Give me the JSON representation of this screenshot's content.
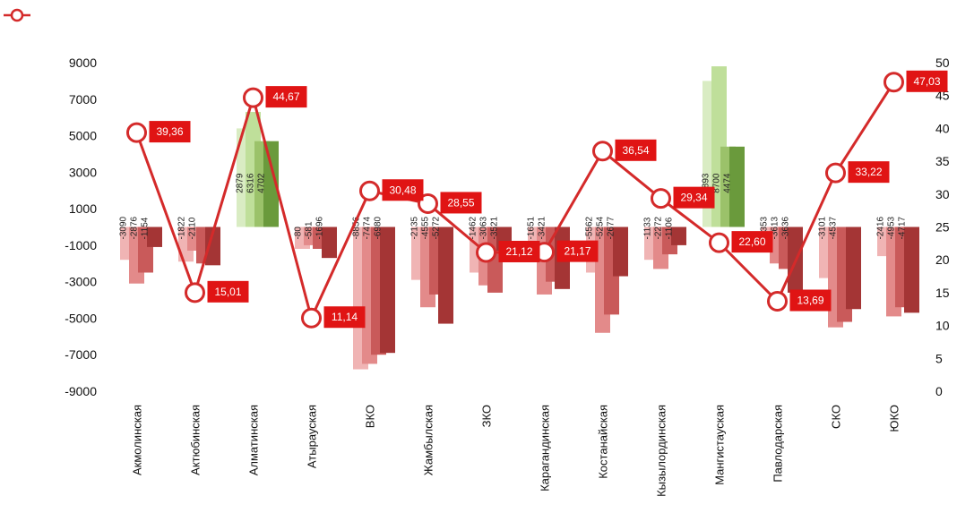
{
  "chart_data": {
    "type": "bar",
    "categories": [
      "Акмолинская",
      "Актюбинская",
      "Алматинская",
      "Атырауская",
      "ВКО",
      "Жамбылская",
      "ЗКО",
      "Карагандинская",
      "Костанайская",
      "Кызылординская",
      "Мангистауская",
      "Павлодарская",
      "СКО",
      "ЮКО"
    ],
    "y_left": {
      "ticks": [
        9000,
        7000,
        5000,
        3000,
        1000,
        -1000,
        -3000,
        -5000,
        -7000,
        -9000
      ],
      "ylim": [
        -9000,
        9000
      ]
    },
    "y_right": {
      "ticks": [
        50,
        45,
        40,
        35,
        30,
        25,
        20,
        15,
        10,
        5,
        0
      ],
      "ylim": [
        0,
        50
      ]
    },
    "bar_series": [
      {
        "values": [
          -1800,
          -1900,
          5400,
          -1200,
          -7800,
          -2900,
          -2500,
          -1700,
          -2500,
          -1800,
          8000,
          -1300,
          -2800,
          -1600
        ]
      },
      {
        "values": [
          -3100,
          -1300,
          6300,
          -1000,
          -7500,
          -4400,
          -3200,
          -3700,
          -5800,
          -2300,
          8800,
          -2000,
          -5500,
          -4900
        ]
      },
      {
        "values": [
          -2500,
          -2000,
          4700,
          -1200,
          -7000,
          -3700,
          -3600,
          -3000,
          -4800,
          -1500,
          4400,
          -2300,
          -5200,
          -4400
        ]
      },
      {
        "values": [
          -1100,
          -2100,
          4700,
          -1700,
          -6900,
          -5300,
          -1300,
          -3400,
          -2700,
          -1000,
          4400,
          -3600,
          -4500,
          -4700
        ]
      }
    ],
    "bar_labels": [
      [
        "-3090",
        "-2876",
        "-1154"
      ],
      [
        "-1822",
        "-2110"
      ],
      [
        "2879",
        "6316",
        "4702"
      ],
      [
        "-80",
        "-581",
        "-1696"
      ],
      [
        "-8856",
        "-7474",
        "-6980"
      ],
      [
        "-2135",
        "-4555",
        "-5272"
      ],
      [
        "-1462",
        "-3063",
        "-3521"
      ],
      [
        "-1651",
        "-3421"
      ],
      [
        "-5562",
        "-5254",
        "-2677"
      ],
      [
        "-1133",
        "-2272",
        "-1106"
      ],
      [
        "7893",
        "8700",
        "4474"
      ],
      [
        "-1353",
        "-3613",
        "-3636"
      ],
      [
        "-3101",
        "-4537"
      ],
      [
        "-2416",
        "-4953",
        "-4717"
      ]
    ],
    "line_series": {
      "values": [
        39.36,
        15.01,
        44.67,
        11.14,
        30.48,
        28.55,
        21.12,
        21.17,
        36.54,
        29.34,
        22.6,
        13.69,
        33.22,
        47.03
      ],
      "labels": [
        "39,36",
        "15,01",
        "44,67",
        "11,14",
        "30,48",
        "28,55",
        "21,12",
        "21,17",
        "36,54",
        "29,34",
        "22,60",
        "13,69",
        "33,22",
        "47,03"
      ]
    },
    "grid": false,
    "legend": "top-left",
    "colors": {
      "line": "#d42a2a",
      "label_box": "#e01414",
      "bars_negative": [
        "#f0b4b4",
        "#e38a8a",
        "#c95a5a",
        "#a43535"
      ],
      "bars_positive": [
        "#d9ecc3",
        "#bfdf9a",
        "#9bc26a",
        "#6a9a3c"
      ]
    }
  }
}
